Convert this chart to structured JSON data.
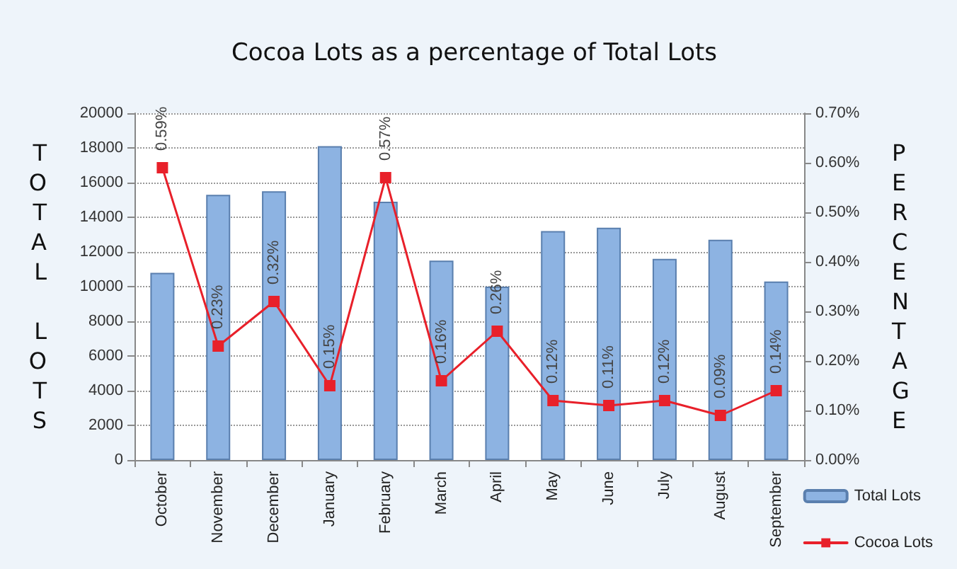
{
  "chart_data": {
    "type": "bar",
    "title": "Cocoa Lots as a percentage of Total Lots",
    "ylabel": "TOTAL LOTS",
    "y2label": "PERCENTAGE",
    "categories": [
      "October",
      "November",
      "December",
      "January",
      "February",
      "March",
      "April",
      "May",
      "June",
      "July",
      "August",
      "September"
    ],
    "series": [
      {
        "name": "Total Lots",
        "color": "#8db3e2",
        "values": [
          10800,
          15300,
          15500,
          18100,
          14900,
          11500,
          10000,
          13200,
          13400,
          11600,
          12700,
          10300
        ]
      },
      {
        "name": "Cocoa Lots",
        "type": "line",
        "axis": "y2",
        "color": "#e8202a",
        "marker": "square",
        "line_style": "solid",
        "values": [
          0.59,
          0.23,
          0.32,
          0.15,
          0.57,
          0.16,
          0.26,
          0.12,
          0.11,
          0.12,
          0.09,
          0.14
        ],
        "value_labels": [
          "0.59%",
          "0.23%",
          "0.32%",
          "0.15%",
          "0.57%",
          "0.16%",
          "0.26%",
          "0.12%",
          "0.11%",
          "0.12%",
          "0.09%",
          "0.14%"
        ]
      }
    ],
    "ylim": [
      0,
      20000
    ],
    "yticks": [
      0,
      2000,
      4000,
      6000,
      8000,
      10000,
      12000,
      14000,
      16000,
      18000,
      20000
    ],
    "y2lim": [
      0,
      0.7
    ],
    "y2ticks": [
      {
        "value": 0,
        "label": "0.00%"
      },
      {
        "value": 0.1,
        "label": "0.10%"
      },
      {
        "value": 0.2,
        "label": "0.20%"
      },
      {
        "value": 0.3,
        "label": "0.30%"
      },
      {
        "value": 0.4,
        "label": "0.40%"
      },
      {
        "value": 0.5,
        "label": "0.50%"
      },
      {
        "value": 0.6,
        "label": "0.60%"
      },
      {
        "value": 0.7,
        "label": "0.70%"
      }
    ],
    "grid": "y",
    "legend": "right"
  }
}
